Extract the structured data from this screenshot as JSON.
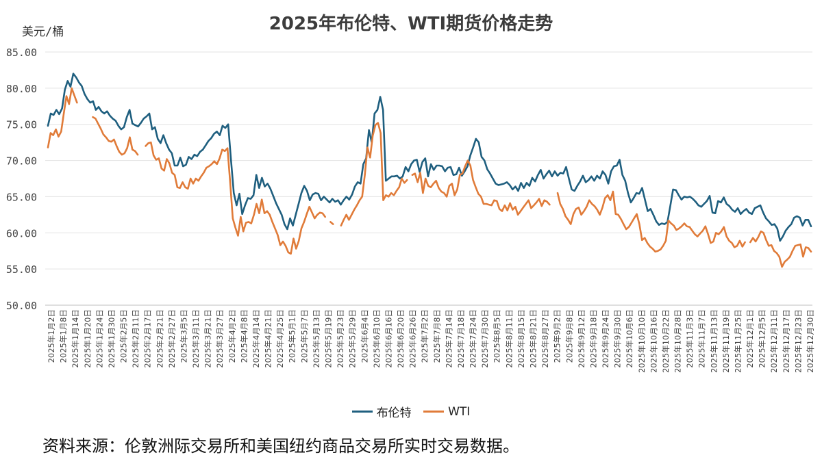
{
  "chart_data": {
    "type": "line",
    "title": "2025年布伦特、WTI期货价格走势",
    "ylabel": "美元/桶",
    "ylim": [
      50,
      85
    ],
    "yticks": [
      "85.00",
      "80.00",
      "75.00",
      "70.00",
      "65.00",
      "60.00",
      "55.00",
      "50.00"
    ],
    "grid": true,
    "legend_position": "bottom",
    "x_ticks": [
      "2025年1月2日",
      "2025年1月8日",
      "2025年1月14日",
      "2025年1月20日",
      "2025年1月24日",
      "2025年1月30日",
      "2025年2月5日",
      "2025年2月11日",
      "2025年2月17日",
      "2025年2月21日",
      "2025年2月27日",
      "2025年3月5日",
      "2025年3月11日",
      "2025年3月21日",
      "2025年3月27日",
      "2025年4月2日",
      "2025年4月8日",
      "2025年4月14日",
      "2025年4月21日",
      "2025年4月25日",
      "2025年5月1日",
      "2025年5月7日",
      "2025年5月13日",
      "2025年5月19日",
      "2025年5月23日",
      "2025年5月29日",
      "2025年6月4日",
      "2025年6月10日",
      "2025年6月16日",
      "2025年6月20日",
      "2025年6月26日",
      "2025年7月2日",
      "2025年7月8日",
      "2025年7月14日",
      "2025年7月18日",
      "2025年7月24日",
      "2025年7月30日",
      "2025年8月5日",
      "2025年8月11日",
      "2025年8月15日",
      "2025年8月21日",
      "2025年8月27日",
      "2025年9月2日",
      "2025年9月8日",
      "2025年9月12日",
      "2025年9月18日",
      "2025年9月24日",
      "2025年9月30日",
      "2025年10月6日",
      "2025年10月10日",
      "2025年10月16日",
      "2025年10月22日",
      "2025年10月28日",
      "2025年11月3日",
      "2025年11月7日",
      "2025年11月13日",
      "2025年11月19日",
      "2025年11月25日",
      "2025年12月1日",
      "2025年12月5日",
      "2025年12月11日",
      "2025年12月17日",
      "2025年12月23日",
      "2025年12月30日"
    ],
    "series": [
      {
        "name": "布伦特",
        "color": "#1f5f7f",
        "values": [
          74.8,
          76.5,
          76.3,
          77.0,
          76.4,
          77.2,
          79.8,
          81.0,
          80.2,
          82.0,
          81.5,
          80.8,
          80.3,
          79.2,
          78.5,
          78.0,
          78.2,
          77.0,
          77.4,
          76.8,
          76.5,
          76.8,
          76.2,
          75.8,
          75.5,
          74.8,
          74.3,
          74.6,
          76.0,
          77.0,
          75.1,
          74.9,
          74.7,
          75.2,
          75.8,
          76.1,
          76.5,
          74.3,
          74.6,
          73.0,
          72.4,
          73.5,
          72.4,
          71.5,
          71.0,
          69.3,
          69.3,
          70.4,
          69.2,
          69.4,
          70.5,
          70.2,
          70.8,
          70.6,
          71.2,
          71.5,
          72.1,
          72.7,
          73.1,
          73.7,
          74.0,
          73.5,
          74.8,
          74.5,
          75.0,
          70.1,
          65.5,
          63.8,
          65.4,
          62.6,
          63.8,
          64.8,
          64.7,
          65.2,
          68.0,
          66.2,
          67.6,
          66.4,
          66.8,
          66.1,
          65.1,
          64.1,
          63.3,
          62.5,
          61.2,
          60.5,
          62.0,
          61.0,
          62.5,
          64.0,
          65.5,
          66.5,
          65.8,
          64.5,
          65.3,
          65.5,
          65.4,
          64.5,
          65.0,
          64.6,
          64.2,
          64.7,
          64.3,
          64.5,
          63.9,
          64.5,
          65.0,
          64.6,
          65.3,
          66.4,
          67.0,
          66.8,
          69.5,
          70.3,
          74.2,
          72.5,
          76.5,
          77.0,
          78.8,
          77.0,
          67.2,
          67.5,
          67.8,
          67.8,
          67.9,
          67.5,
          67.8,
          69.1,
          68.5,
          69.5,
          70.0,
          70.1,
          68.4,
          69.8,
          70.3,
          67.8,
          69.5,
          68.7,
          69.3,
          69.3,
          69.2,
          68.5,
          69.0,
          69.1,
          68.0,
          68.1,
          69.0,
          67.9,
          68.5,
          69.2,
          70.7,
          71.8,
          73.0,
          72.5,
          70.5,
          70.0,
          68.8,
          68.2,
          67.5,
          66.8,
          66.6,
          66.7,
          66.8,
          67.0,
          66.6,
          66.0,
          66.4,
          65.8,
          66.9,
          66.2,
          66.9,
          66.5,
          67.6,
          67.1,
          68.0,
          68.7,
          67.5,
          68.1,
          68.6,
          67.8,
          68.5,
          67.9,
          68.3,
          68.2,
          69.1,
          67.5,
          66.0,
          65.8,
          66.5,
          67.1,
          67.9,
          67.0,
          67.3,
          67.8,
          67.2,
          67.9,
          67.5,
          68.5,
          68.0,
          66.8,
          68.5,
          69.2,
          69.3,
          70.1,
          68.0,
          67.2,
          65.5,
          64.2,
          64.8,
          65.5,
          65.4,
          66.2,
          64.6,
          63.0,
          63.3,
          62.5,
          61.6,
          61.1,
          61.3,
          61.2,
          61.5,
          63.7,
          66.0,
          65.9,
          65.2,
          64.6,
          65.0,
          64.9,
          65.0,
          64.7,
          64.3,
          63.8,
          63.6,
          64.0,
          64.4,
          65.1,
          62.8,
          62.7,
          64.4,
          64.2,
          64.9,
          64.0,
          63.7,
          63.2,
          62.9,
          63.4,
          62.6,
          63.0,
          63.3,
          62.8,
          62.6,
          63.4,
          63.6,
          63.8,
          62.8,
          62.0,
          61.6,
          61.1,
          61.2,
          60.6,
          58.9,
          59.5,
          60.3,
          60.8,
          61.2,
          62.1,
          62.3,
          62.1,
          61.0,
          61.8,
          61.8,
          60.9
        ]
      },
      {
        "name": "WTI",
        "color": "#e07b39",
        "values": [
          71.8,
          73.8,
          73.5,
          74.3,
          73.3,
          74.0,
          76.5,
          78.9,
          77.8,
          80.0,
          79.0,
          78.0,
          null,
          null,
          null,
          null,
          null,
          76.0,
          75.8,
          75.1,
          74.4,
          73.6,
          73.2,
          72.7,
          72.6,
          72.9,
          72.0,
          71.2,
          70.8,
          71.0,
          71.7,
          73.2,
          71.5,
          71.3,
          70.8,
          null,
          null,
          72.0,
          72.4,
          72.5,
          70.7,
          70.1,
          70.3,
          68.9,
          68.6,
          70.2,
          69.6,
          68.3,
          68.0,
          66.3,
          66.2,
          67.0,
          66.3,
          66.1,
          67.5,
          66.8,
          67.5,
          67.2,
          67.8,
          68.3,
          69.0,
          69.2,
          69.5,
          69.9,
          69.5,
          70.3,
          71.5,
          71.3,
          71.7,
          67.0,
          62.0,
          60.7,
          59.6,
          62.2,
          60.2,
          61.4,
          61.5,
          61.3,
          62.5,
          64.0,
          62.7,
          64.6,
          62.7,
          63.0,
          62.5,
          61.5,
          60.6,
          59.7,
          58.3,
          58.8,
          58.2,
          57.3,
          57.1,
          59.2,
          57.8,
          58.9,
          60.6,
          61.5,
          62.6,
          63.6,
          62.8,
          62.0,
          62.5,
          62.8,
          62.7,
          62.2,
          null,
          61.5,
          61.2,
          null,
          null,
          61.0,
          61.8,
          62.5,
          61.8,
          62.5,
          63.2,
          63.8,
          64.5,
          65.0,
          68.0,
          71.8,
          70.4,
          73.4,
          74.9,
          75.2,
          73.8,
          64.5,
          65.2,
          65.0,
          65.5,
          65.2,
          65.8,
          66.3,
          67.5,
          66.9,
          67.3,
          null,
          68.0,
          68.2,
          67.0,
          68.3,
          65.5,
          67.5,
          66.5,
          66.3,
          66.8,
          67.2,
          66.2,
          65.7,
          65.5,
          65.0,
          66.5,
          66.8,
          65.2,
          66.0,
          68.0,
          68.2,
          69.2,
          70.0,
          69.3,
          67.3,
          66.3,
          65.4,
          65.0,
          64.0,
          64.0,
          63.9,
          63.8,
          64.5,
          64.4,
          63.3,
          63.0,
          63.8,
          63.1,
          64.1,
          63.2,
          63.6,
          62.5,
          63.0,
          63.5,
          64.0,
          64.5,
          63.4,
          63.8,
          64.2,
          64.7,
          63.7,
          64.5,
          64.3,
          63.9,
          null,
          null,
          65.5,
          64.0,
          63.3,
          62.3,
          61.8,
          61.2,
          62.6,
          63.3,
          63.5,
          62.5,
          63.0,
          63.6,
          64.5,
          64.0,
          63.7,
          63.2,
          62.5,
          63.5,
          64.8,
          65.2,
          64.5,
          65.7,
          62.6,
          62.5,
          61.9,
          61.2,
          60.5,
          60.8,
          61.4,
          62.0,
          62.6,
          61.2,
          59.0,
          59.3,
          58.6,
          58.1,
          57.8,
          57.4,
          57.5,
          57.7,
          58.2,
          58.9,
          61.7,
          61.3,
          61.0,
          60.4,
          60.6,
          60.9,
          61.3,
          60.9,
          60.8,
          60.3,
          59.8,
          59.5,
          59.9,
          60.3,
          60.9,
          59.8,
          58.6,
          58.8,
          60.0,
          59.8,
          60.2,
          60.8,
          59.5,
          58.9,
          58.6,
          58.0,
          58.2,
          58.9,
          58.1,
          58.7,
          null,
          58.7,
          59.3,
          58.8,
          59.4,
          60.2,
          60.0,
          59.0,
          58.2,
          58.3,
          57.5,
          57.2,
          56.7,
          55.3,
          56.0,
          56.3,
          56.7,
          57.5,
          58.2,
          58.3,
          58.4,
          56.7,
          58.0,
          57.9,
          57.4
        ]
      }
    ]
  },
  "source_note": "资料来源：伦敦洲际交易所和美国纽约商品交易所实时交易数据。"
}
